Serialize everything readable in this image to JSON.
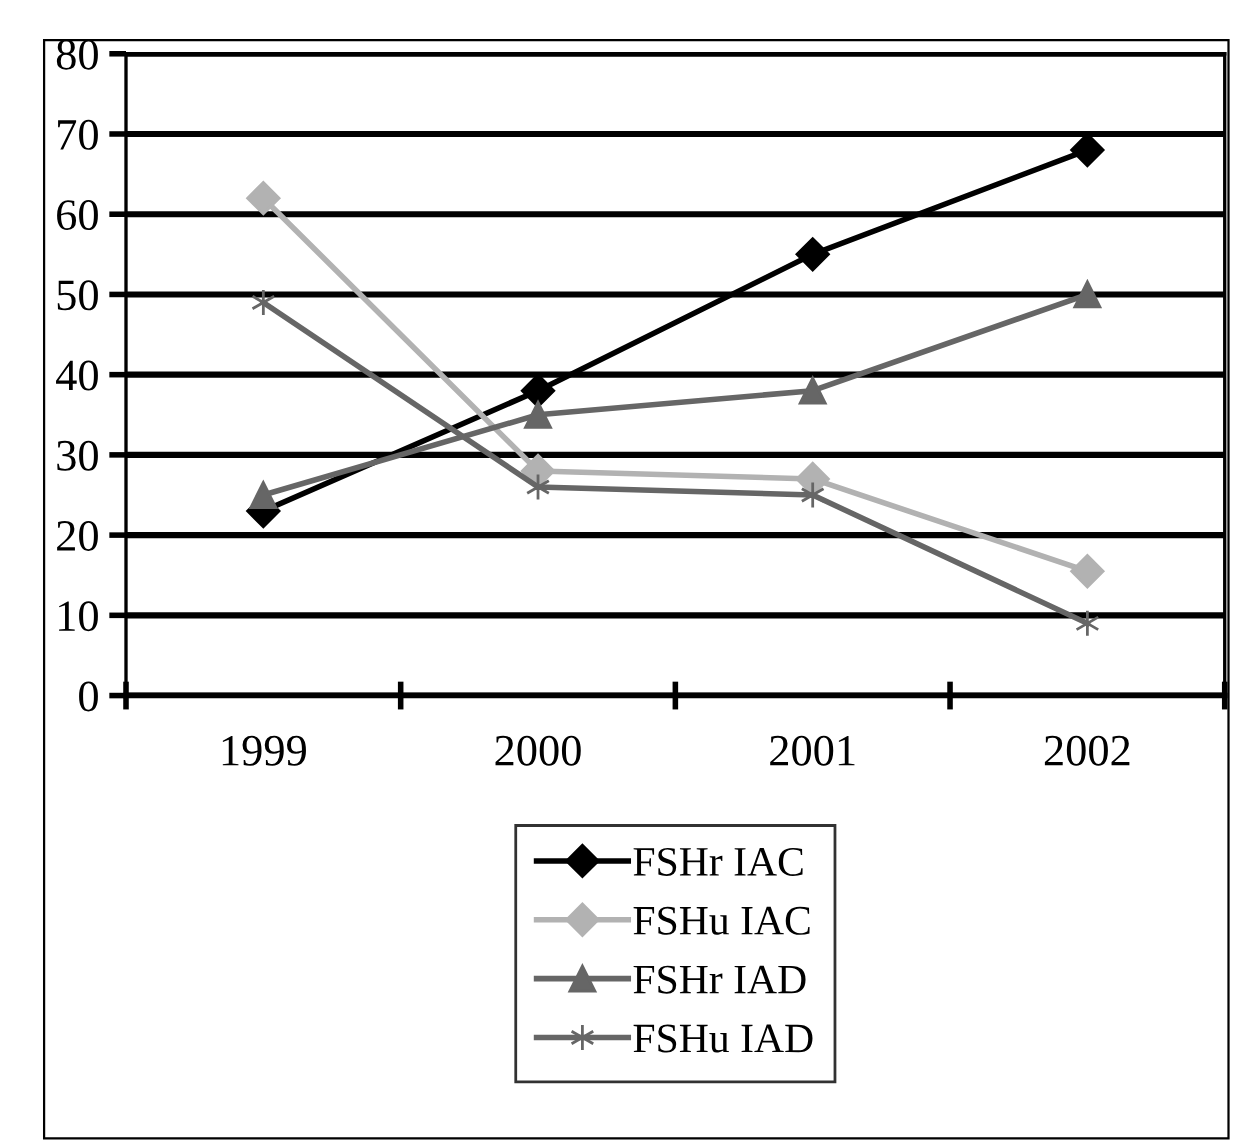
{
  "chart_data": {
    "type": "line",
    "categories": [
      "1999",
      "2000",
      "2001",
      "2002"
    ],
    "series": [
      {
        "name": "FSHr IAC",
        "color": "#000000",
        "marker": "diamond",
        "values": [
          23,
          38,
          55,
          68
        ]
      },
      {
        "name": "FSHu IAC",
        "color": "#b2b2b2",
        "marker": "diamond",
        "values": [
          62,
          28,
          27,
          15.5
        ]
      },
      {
        "name": "FSHr IAD",
        "color": "#666666",
        "marker": "triangle",
        "values": [
          25,
          35,
          38,
          50
        ]
      },
      {
        "name": "FSHu IAD",
        "color": "#666666",
        "marker": "cross",
        "values": [
          49,
          26,
          25,
          9
        ]
      }
    ],
    "ylim": [
      0,
      80
    ],
    "yticks": [
      0,
      10,
      20,
      30,
      40,
      50,
      60,
      70,
      80
    ],
    "grid": "y",
    "legend": "bottom",
    "line_style": "solid"
  }
}
